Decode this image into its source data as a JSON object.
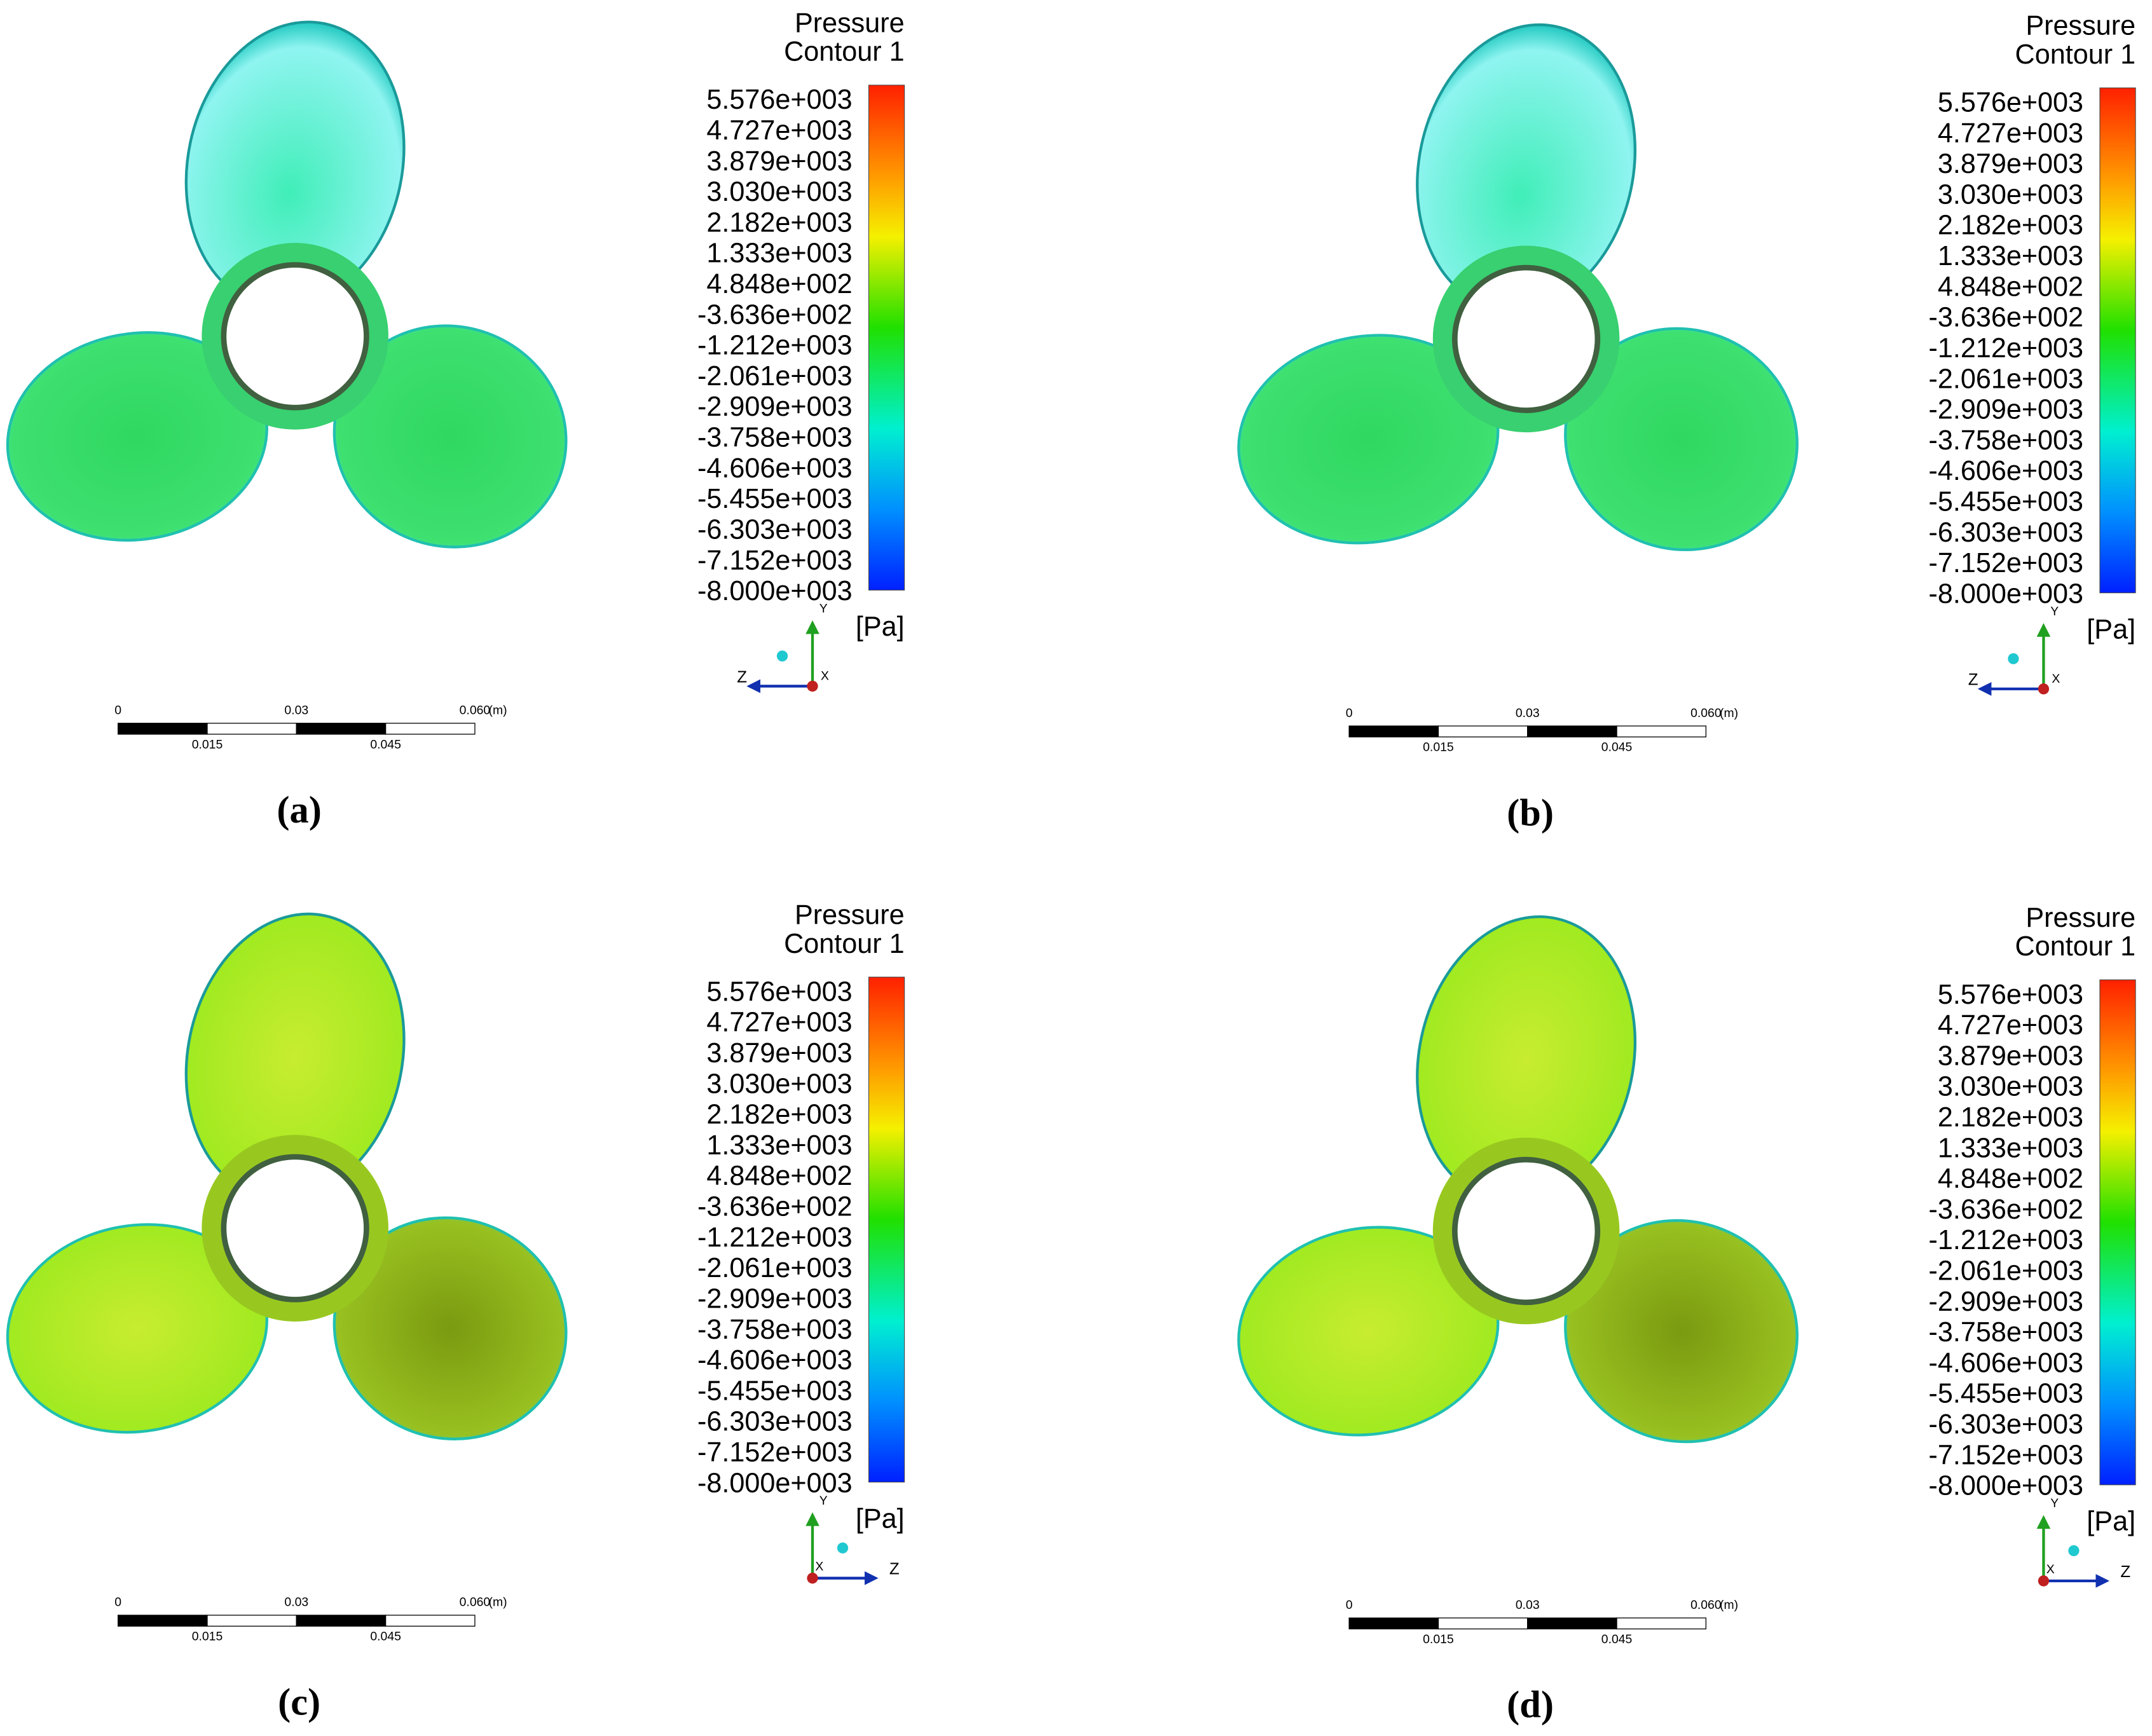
{
  "panels": [
    {
      "legend": {
        "title": "Pressure",
        "subtitle": "Contour 1",
        "ticks": [
          "5.576e+003",
          "4.727e+003",
          "3.879e+003",
          "3.030e+003",
          "2.182e+003",
          "1.333e+003",
          "4.848e+002",
          "-3.636e+002",
          "-1.212e+003",
          "-2.061e+003",
          "-2.909e+003",
          "-3.758e+003",
          "-4.606e+003",
          "-5.455e+003",
          "-6.303e+003",
          "-7.152e+003",
          "-8.000e+003"
        ],
        "unit": "[Pa]"
      },
      "triad": {
        "y": "Y",
        "z": "Z",
        "x": "X"
      },
      "scale": {
        "top": [
          "0",
          "0.03",
          "0.060"
        ],
        "bottom": [
          "0.015",
          "0.045"
        ],
        "unit": "(m)"
      },
      "caption": "(a)"
    },
    {
      "legend": {
        "title": "Pressure",
        "subtitle": "Contour 1",
        "ticks": [
          "5.576e+003",
          "4.727e+003",
          "3.879e+003",
          "3.030e+003",
          "2.182e+003",
          "1.333e+003",
          "4.848e+002",
          "-3.636e+002",
          "-1.212e+003",
          "-2.061e+003",
          "-2.909e+003",
          "-3.758e+003",
          "-4.606e+003",
          "-5.455e+003",
          "-6.303e+003",
          "-7.152e+003",
          "-8.000e+003"
        ],
        "unit": "[Pa]"
      },
      "triad": {
        "y": "Y",
        "z": "Z",
        "x": "X"
      },
      "scale": {
        "top": [
          "0",
          "0.03",
          "0.060"
        ],
        "bottom": [
          "0.015",
          "0.045"
        ],
        "unit": "(m)"
      },
      "caption": "(b)"
    },
    {
      "legend": {
        "title": "Pressure",
        "subtitle": "Contour 1",
        "ticks": [
          "5.576e+003",
          "4.727e+003",
          "3.879e+003",
          "3.030e+003",
          "2.182e+003",
          "1.333e+003",
          "4.848e+002",
          "-3.636e+002",
          "-1.212e+003",
          "-2.061e+003",
          "-2.909e+003",
          "-3.758e+003",
          "-4.606e+003",
          "-5.455e+003",
          "-6.303e+003",
          "-7.152e+003",
          "-8.000e+003"
        ],
        "unit": "[Pa]"
      },
      "triad": {
        "y": "Y",
        "z": "Z",
        "x": "X"
      },
      "scale": {
        "top": [
          "0",
          "0.03",
          "0.060"
        ],
        "bottom": [
          "0.015",
          "0.045"
        ],
        "unit": "(m)"
      },
      "caption": "(c)"
    },
    {
      "legend": {
        "title": "Pressure",
        "subtitle": "Contour 1",
        "ticks": [
          "5.576e+003",
          "4.727e+003",
          "3.879e+003",
          "3.030e+003",
          "2.182e+003",
          "1.333e+003",
          "4.848e+002",
          "-3.636e+002",
          "-1.212e+003",
          "-2.061e+003",
          "-2.909e+003",
          "-3.758e+003",
          "-4.606e+003",
          "-5.455e+003",
          "-6.303e+003",
          "-7.152e+003",
          "-8.000e+003"
        ],
        "unit": "[Pa]"
      },
      "triad": {
        "y": "Y",
        "z": "Z",
        "x": "X"
      },
      "scale": {
        "top": [
          "0",
          "0.03",
          "0.060"
        ],
        "bottom": [
          "0.015",
          "0.045"
        ],
        "unit": "(m)"
      },
      "caption": "(d)"
    }
  ]
}
